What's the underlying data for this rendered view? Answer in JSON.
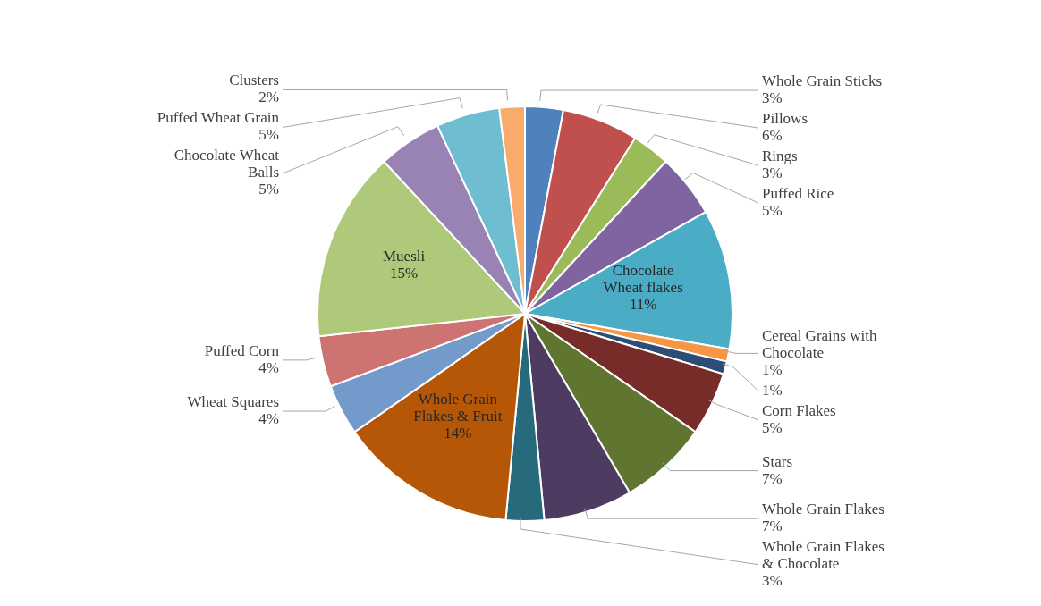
{
  "chart_data": {
    "type": "pie",
    "categories": [
      "Whole Grain Sticks",
      "Pillows",
      "Rings",
      "Puffed Rice",
      "Chocolate Wheat flakes",
      "Cereal Grains with Chocolate",
      null,
      "Corn Flakes",
      "Stars",
      "Whole Grain Flakes",
      "Whole Grain Flakes & Chocolate",
      "Whole Grain Flakes & Fruit",
      "Wheat Squares",
      "Puffed Corn",
      "Muesli",
      "Chocolate Wheat Balls",
      "Puffed Wheat Grain",
      "Clusters"
    ],
    "values": [
      3,
      6,
      3,
      5,
      11,
      1,
      1,
      5,
      7,
      7,
      3,
      14,
      4,
      4,
      15,
      5,
      5,
      2
    ],
    "value_labels": [
      "3%",
      "6%",
      "3%",
      "5%",
      "11%",
      "1%",
      "1%",
      "5%",
      "7%",
      "7%",
      "3%",
      "14%",
      "4%",
      "4%",
      "15%",
      "5%",
      "5%",
      "2%"
    ],
    "colors": [
      "#4f81bd",
      "#c0504d",
      "#9bbb59",
      "#8064a2",
      "#4bacc6",
      "#f79646",
      "#2c4d75",
      "#772c2a",
      "#5f7530",
      "#4d3b62",
      "#276a7c",
      "#b65708",
      "#729aca",
      "#cd7371",
      "#afc97a",
      "#9983b5",
      "#6fbdd1",
      "#f9ab6b"
    ]
  }
}
